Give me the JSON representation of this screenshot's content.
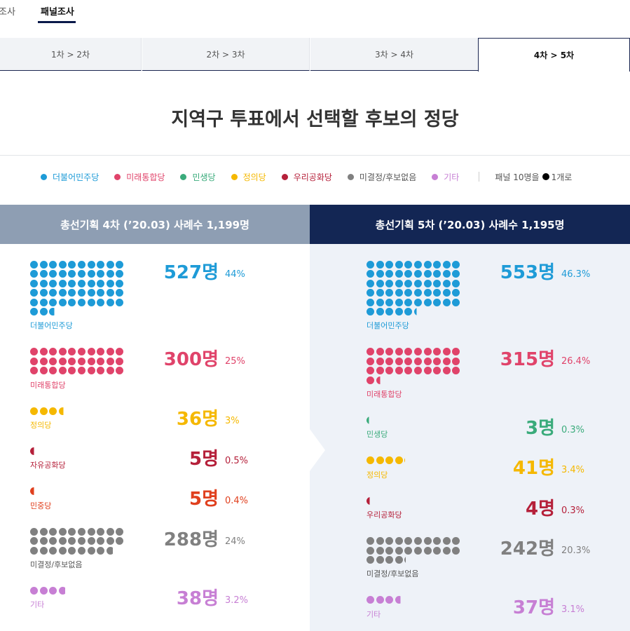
{
  "top_nav": {
    "tabs": [
      "조사",
      "패널조사"
    ],
    "active": 1
  },
  "round_tabs": [
    {
      "label": "1차 > 2차"
    },
    {
      "label": "2차 > 3차"
    },
    {
      "label": "3차 > 4차"
    },
    {
      "label": "4차 > 5차",
      "active": true
    }
  ],
  "title": "지역구 투표에서 선택할 후보의 정당",
  "legend": {
    "items": [
      {
        "label": "더불어민주당",
        "color": "#1e9bd7"
      },
      {
        "label": "미래통합당",
        "color": "#e0436a"
      },
      {
        "label": "민생당",
        "color": "#3aab7b"
      },
      {
        "label": "정의당",
        "color": "#f5b800"
      },
      {
        "label": "우리공화당",
        "color": "#b5203a"
      },
      {
        "label": "미결정/후보없음",
        "color": "#808080"
      },
      {
        "label": "기타",
        "color": "#c77fd4"
      }
    ],
    "note_prefix": "패널 10명을",
    "note_suffix": "1개로"
  },
  "chart_data": {
    "type": "dot_plot",
    "title": "지역구 투표에서 선택할 후보의 정당",
    "unit_note": "패널 10명을 ●1개로",
    "panels": [
      {
        "header": "총선기획 4차 (’20.03) 사례수 1,199명",
        "parties": [
          {
            "name": "더불어민주당",
            "count_label": "527명",
            "count": 527,
            "pct_label": "44%",
            "pct": 44,
            "color": "#1e9bd7"
          },
          {
            "name": "미래통합당",
            "count_label": "300명",
            "count": 300,
            "pct_label": "25%",
            "pct": 25,
            "color": "#e0436a"
          },
          {
            "name": "정의당",
            "count_label": "36명",
            "count": 36,
            "pct_label": "3%",
            "pct": 3,
            "color": "#f5b800"
          },
          {
            "name": "자유공화당",
            "count_label": "5명",
            "count": 5,
            "pct_label": "0.5%",
            "pct": 0.5,
            "color": "#b5203a"
          },
          {
            "name": "민중당",
            "count_label": "5명",
            "count": 5,
            "pct_label": "0.4%",
            "pct": 0.4,
            "color": "#e0401e"
          },
          {
            "name": "미결정/후보없음",
            "count_label": "288명",
            "count": 288,
            "pct_label": "24%",
            "pct": 24,
            "color": "#808080"
          },
          {
            "name": "기타",
            "count_label": "38명",
            "count": 38,
            "pct_label": "3.2%",
            "pct": 3.2,
            "color": "#c77fd4"
          }
        ]
      },
      {
        "header": "총선기획 5차 (’20.03) 사례수 1,195명",
        "parties": [
          {
            "name": "더불어민주당",
            "count_label": "553명",
            "count": 553,
            "pct_label": "46.3%",
            "pct": 46.3,
            "color": "#1e9bd7"
          },
          {
            "name": "미래통합당",
            "count_label": "315명",
            "count": 315,
            "pct_label": "26.4%",
            "pct": 26.4,
            "color": "#e0436a"
          },
          {
            "name": "민생당",
            "count_label": "3명",
            "count": 3,
            "pct_label": "0.3%",
            "pct": 0.3,
            "color": "#3aab7b"
          },
          {
            "name": "정의당",
            "count_label": "41명",
            "count": 41,
            "pct_label": "3.4%",
            "pct": 3.4,
            "color": "#f5b800"
          },
          {
            "name": "우리공화당",
            "count_label": "4명",
            "count": 4,
            "pct_label": "0.3%",
            "pct": 0.3,
            "color": "#b5203a"
          },
          {
            "name": "미결정/후보없음",
            "count_label": "242명",
            "count": 242,
            "pct_label": "20.3%",
            "pct": 20.3,
            "color": "#808080"
          },
          {
            "name": "기타",
            "count_label": "37명",
            "count": 37,
            "pct_label": "3.1%",
            "pct": 3.1,
            "color": "#c77fd4"
          }
        ]
      }
    ]
  }
}
